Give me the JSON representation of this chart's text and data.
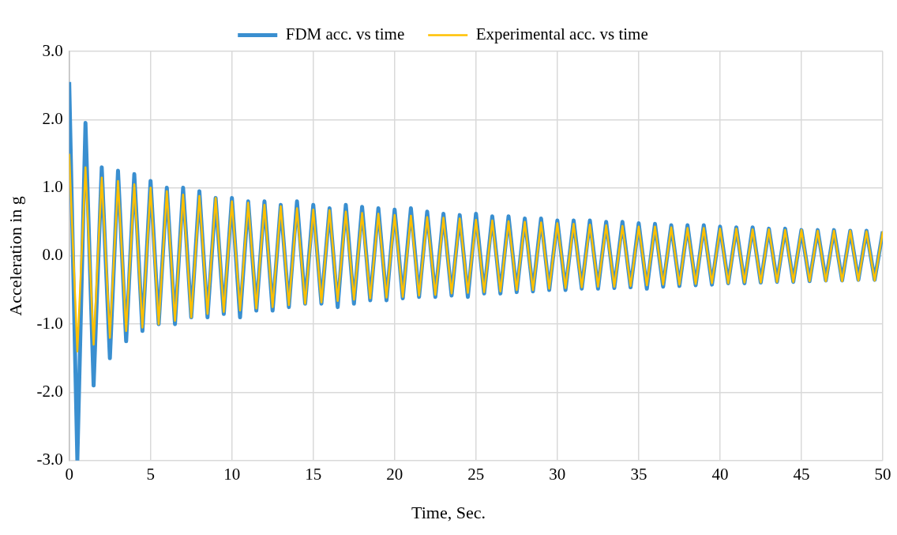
{
  "chart_data": {
    "type": "line",
    "ylabel": "Acceleration in g",
    "xlabel": "Time, Sec.",
    "legend": "top",
    "grid": true,
    "marker": "none",
    "line_style": "solid",
    "xlim": [
      0,
      50
    ],
    "xticks": [
      0,
      5,
      10,
      15,
      20,
      25,
      30,
      35,
      40,
      45,
      50
    ],
    "ylim": [
      -3,
      3
    ],
    "yticks": [
      {
        "value": -3,
        "label": "-3.0"
      },
      {
        "value": -2,
        "label": "-2.0"
      },
      {
        "value": -1,
        "label": "-1.0"
      },
      {
        "value": 0,
        "label": "0.0"
      },
      {
        "value": 1,
        "label": "1.0"
      },
      {
        "value": 2,
        "label": "2.0"
      },
      {
        "value": 3,
        "label": "3.0"
      }
    ],
    "x": [
      0,
      0.5,
      1,
      1.5,
      2,
      2.5,
      3,
      3.5,
      4,
      4.5,
      5,
      5.5,
      6,
      6.5,
      7,
      7.5,
      8,
      8.5,
      9,
      9.5,
      10,
      10.5,
      11,
      11.5,
      12,
      12.5,
      13,
      13.5,
      14,
      14.5,
      15,
      15.5,
      16,
      16.5,
      17,
      17.5,
      18,
      18.5,
      19,
      19.5,
      20,
      20.5,
      21,
      21.5,
      22,
      22.5,
      23,
      23.5,
      24,
      24.5,
      25,
      25.5,
      26,
      26.5,
      27,
      27.5,
      28,
      28.5,
      29,
      29.5,
      30,
      30.5,
      31,
      31.5,
      32,
      32.5,
      33,
      33.5,
      34,
      34.5,
      35,
      35.5,
      36,
      36.5,
      37,
      37.5,
      38,
      38.5,
      39,
      39.5,
      40,
      40.5,
      41,
      41.5,
      42,
      42.5,
      43,
      43.5,
      44,
      44.5,
      45,
      45.5,
      46,
      46.5,
      47,
      47.5,
      48,
      48.5,
      49,
      49.5,
      50
    ],
    "series": [
      {
        "name": "FDM acc. vs time",
        "color": "#3a8fd0",
        "values": [
          2.55,
          -3.0,
          1.95,
          -1.9,
          1.3,
          -1.5,
          1.25,
          -1.25,
          1.2,
          -1.1,
          1.1,
          -1.0,
          1.0,
          -1.0,
          1.0,
          -0.9,
          0.95,
          -0.9,
          0.85,
          -0.85,
          0.85,
          -0.9,
          0.8,
          -0.8,
          0.8,
          -0.8,
          0.75,
          -0.75,
          0.8,
          -0.7,
          0.75,
          -0.7,
          0.7,
          -0.75,
          0.75,
          -0.7,
          0.72,
          -0.65,
          0.7,
          -0.65,
          0.68,
          -0.62,
          0.7,
          -0.6,
          0.65,
          -0.6,
          0.62,
          -0.58,
          0.6,
          -0.6,
          0.62,
          -0.55,
          0.58,
          -0.55,
          0.58,
          -0.53,
          0.55,
          -0.52,
          0.55,
          -0.5,
          0.52,
          -0.5,
          0.52,
          -0.48,
          0.52,
          -0.48,
          0.5,
          -0.47,
          0.5,
          -0.46,
          0.48,
          -0.48,
          0.47,
          -0.45,
          0.45,
          -0.44,
          0.45,
          -0.43,
          0.45,
          -0.42,
          0.43,
          -0.4,
          0.42,
          -0.4,
          0.42,
          -0.39,
          0.4,
          -0.38,
          0.4,
          -0.38,
          0.38,
          -0.37,
          0.38,
          -0.36,
          0.38,
          -0.36,
          0.37,
          -0.35,
          0.37,
          -0.35,
          0.36
        ]
      },
      {
        "name": "Experimental acc. vs time",
        "color": "#ffc000",
        "values": [
          1.5,
          -1.4,
          1.3,
          -1.3,
          1.15,
          -1.2,
          1.1,
          -1.1,
          1.05,
          -1.05,
          1.0,
          -1.0,
          0.95,
          -0.95,
          0.9,
          -0.9,
          0.88,
          -0.85,
          0.85,
          -0.82,
          0.8,
          -0.8,
          0.78,
          -0.77,
          0.75,
          -0.75,
          0.73,
          -0.72,
          0.7,
          -0.7,
          0.68,
          -0.68,
          0.67,
          -0.66,
          0.65,
          -0.64,
          0.63,
          -0.62,
          0.62,
          -0.61,
          0.6,
          -0.6,
          0.59,
          -0.58,
          0.57,
          -0.57,
          0.56,
          -0.55,
          0.55,
          -0.54,
          0.53,
          -0.53,
          0.52,
          -0.52,
          0.51,
          -0.5,
          0.5,
          -0.5,
          0.49,
          -0.48,
          0.48,
          -0.47,
          0.47,
          -0.46,
          0.46,
          -0.45,
          0.45,
          -0.45,
          0.44,
          -0.44,
          0.43,
          -0.43,
          0.43,
          -0.42,
          0.42,
          -0.42,
          0.41,
          -0.41,
          0.41,
          -0.4,
          0.4,
          -0.4,
          0.4,
          -0.39,
          0.39,
          -0.39,
          0.39,
          -0.38,
          0.38,
          -0.38,
          0.38,
          -0.37,
          0.37,
          -0.37,
          0.37,
          -0.37,
          0.37,
          -0.36,
          0.36,
          -0.36,
          0.36
        ]
      }
    ]
  }
}
